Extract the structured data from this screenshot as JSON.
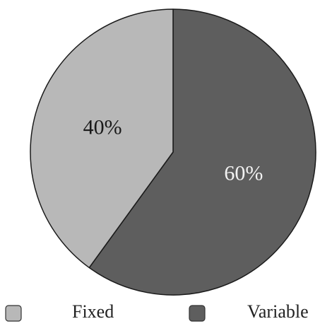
{
  "chart_data": {
    "type": "pie",
    "title": "",
    "slices": [
      {
        "label": "Variable",
        "value": 60,
        "display": "60%",
        "color": "#5e5e5e",
        "label_color": "#f2f2f2"
      },
      {
        "label": "Fixed",
        "value": 40,
        "display": "40%",
        "color": "#b8b8b8",
        "label_color": "#1a1a1a"
      }
    ],
    "start_angle": "12 o'clock",
    "direction": "clockwise",
    "legend": {
      "placement": "bottom",
      "entries": [
        {
          "label": "Fixed",
          "color": "#b8b8b8"
        },
        {
          "label": "Variable",
          "color": "#5e5e5e"
        }
      ]
    }
  }
}
